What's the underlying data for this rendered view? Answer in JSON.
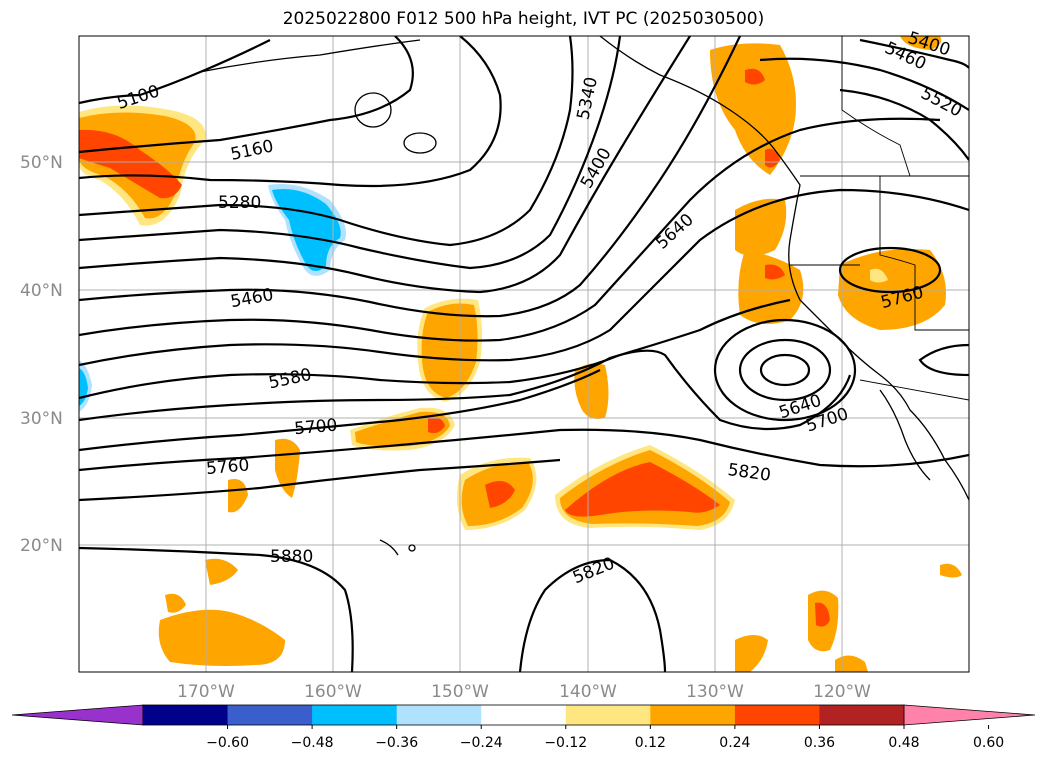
{
  "title": "2025022800 F012 500 hPa height, IVT PC (2025030500)",
  "map": {
    "lat_labels": [
      "50°N",
      "40°N",
      "30°N",
      "20°N"
    ],
    "lon_labels": [
      "170°W",
      "160°W",
      "150°W",
      "140°W",
      "130°W",
      "120°W"
    ],
    "contour_labels": [
      "5100",
      "5160",
      "5280",
      "5460",
      "5580",
      "5700",
      "5760",
      "5880",
      "5340",
      "5400",
      "5640",
      "5820",
      "5820",
      "5640",
      "5700",
      "5760",
      "5460",
      "5520",
      "5400"
    ]
  },
  "colorbar": {
    "ticks": [
      "−0.60",
      "−0.48",
      "−0.36",
      "−0.24",
      "−0.12",
      "0.12",
      "0.24",
      "0.36",
      "0.48",
      "0.60"
    ],
    "colors": [
      "#9932cc",
      "#00008b",
      "#3a5fcd",
      "#00bfff",
      "#b0e2ff",
      "#ffffff",
      "#ffe680",
      "#ffa500",
      "#ff4500",
      "#b22222",
      "#ff82ab"
    ]
  }
}
